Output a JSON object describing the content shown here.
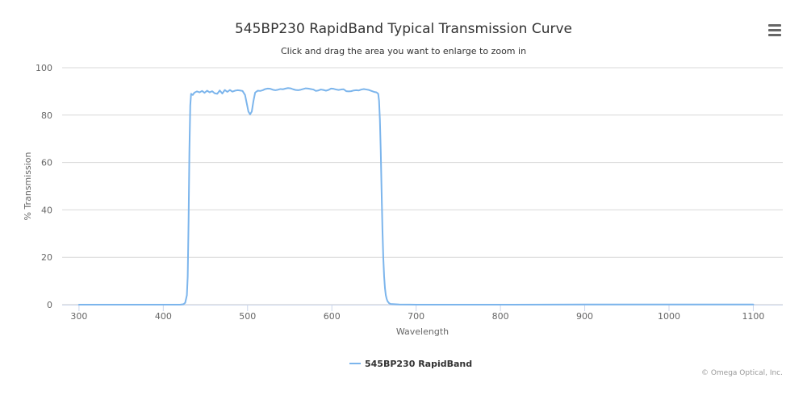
{
  "chart_data": {
    "type": "line",
    "title": "545BP230 RapidBand Typical Transmission Curve",
    "subtitle": "Click and drag the area you want to enlarge to zoom in",
    "xlabel": "Wavelength",
    "ylabel": "% Transmission",
    "xlim": [
      280,
      1135
    ],
    "ylim": [
      0,
      100
    ],
    "x_ticks": [
      300,
      400,
      500,
      600,
      700,
      800,
      900,
      1000,
      1100
    ],
    "y_ticks": [
      0,
      20,
      40,
      60,
      80,
      100
    ],
    "grid": "horizontal",
    "legend_position": "bottom-center",
    "series": [
      {
        "name": "545BP230 RapidBand",
        "color": "#7cb5ec",
        "points": [
          [
            300,
            0
          ],
          [
            400,
            0
          ],
          [
            420,
            0
          ],
          [
            424,
            0.2
          ],
          [
            426,
            0.8
          ],
          [
            428,
            4
          ],
          [
            429,
            12
          ],
          [
            430,
            35
          ],
          [
            431,
            65
          ],
          [
            432,
            84
          ],
          [
            433,
            89
          ],
          [
            435,
            88.5
          ],
          [
            437,
            89.5
          ],
          [
            440,
            90
          ],
          [
            443,
            89.6
          ],
          [
            446,
            90.2
          ],
          [
            449,
            89.4
          ],
          [
            452,
            90.3
          ],
          [
            455,
            89.6
          ],
          [
            458,
            90.1
          ],
          [
            461,
            89.2
          ],
          [
            464,
            89
          ],
          [
            467,
            90.4
          ],
          [
            470,
            89.1
          ],
          [
            473,
            90.6
          ],
          [
            476,
            89.8
          ],
          [
            479,
            90.6
          ],
          [
            482,
            89.9
          ],
          [
            485,
            90.3
          ],
          [
            488,
            90.5
          ],
          [
            491,
            90.4
          ],
          [
            494,
            90.2
          ],
          [
            497,
            88.5
          ],
          [
            499,
            85
          ],
          [
            501,
            81.5
          ],
          [
            503,
            80.3
          ],
          [
            505,
            81.5
          ],
          [
            507,
            86
          ],
          [
            509,
            89.5
          ],
          [
            512,
            90.3
          ],
          [
            515,
            90.2
          ],
          [
            518,
            90.5
          ],
          [
            521,
            91
          ],
          [
            524,
            91.2
          ],
          [
            527,
            91.1
          ],
          [
            530,
            90.7
          ],
          [
            533,
            90.5
          ],
          [
            536,
            90.7
          ],
          [
            539,
            91
          ],
          [
            542,
            90.9
          ],
          [
            545,
            91.2
          ],
          [
            548,
            91.4
          ],
          [
            551,
            91.3
          ],
          [
            554,
            90.9
          ],
          [
            557,
            90.6
          ],
          [
            560,
            90.5
          ],
          [
            563,
            90.7
          ],
          [
            566,
            91
          ],
          [
            569,
            91.3
          ],
          [
            572,
            91.2
          ],
          [
            575,
            91
          ],
          [
            578,
            90.8
          ],
          [
            581,
            90.2
          ],
          [
            584,
            90.4
          ],
          [
            587,
            90.8
          ],
          [
            590,
            90.6
          ],
          [
            593,
            90.3
          ],
          [
            596,
            90.6
          ],
          [
            599,
            91.2
          ],
          [
            602,
            91.1
          ],
          [
            605,
            90.8
          ],
          [
            608,
            90.6
          ],
          [
            611,
            90.8
          ],
          [
            614,
            90.9
          ],
          [
            617,
            90.1
          ],
          [
            620,
            90
          ],
          [
            623,
            90.1
          ],
          [
            626,
            90.4
          ],
          [
            629,
            90.5
          ],
          [
            632,
            90.4
          ],
          [
            635,
            90.8
          ],
          [
            638,
            91
          ],
          [
            641,
            90.8
          ],
          [
            644,
            90.6
          ],
          [
            647,
            90.2
          ],
          [
            650,
            89.8
          ],
          [
            653,
            89.6
          ],
          [
            655,
            89
          ],
          [
            656,
            86
          ],
          [
            657,
            78
          ],
          [
            658,
            65
          ],
          [
            659,
            48
          ],
          [
            660,
            32
          ],
          [
            661,
            20
          ],
          [
            662,
            12
          ],
          [
            663,
            7
          ],
          [
            664,
            4
          ],
          [
            665,
            2.5
          ],
          [
            666,
            1.5
          ],
          [
            668,
            0.6
          ],
          [
            670,
            0.3
          ],
          [
            680,
            0.1
          ],
          [
            700,
            0
          ],
          [
            800,
            0
          ],
          [
            900,
            0.1
          ],
          [
            1000,
            0.1
          ],
          [
            1100,
            0.1
          ]
        ]
      }
    ]
  },
  "credits": "© Omega Optical, Inc.",
  "menu_icon": "hamburger-menu-icon"
}
